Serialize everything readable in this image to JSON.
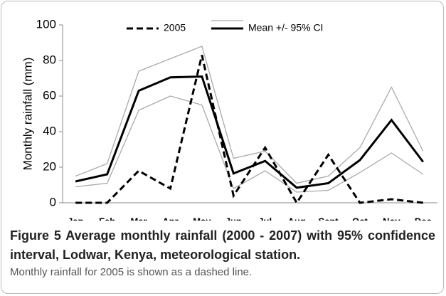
{
  "chart_data": {
    "type": "line",
    "ylabel": "Monthly rainfall (mm)",
    "categories": [
      "Jan",
      "Feb",
      "Mar",
      "Apr",
      "May",
      "Jun",
      "Jul",
      "Aug",
      "Sept",
      "Oct",
      "Nov",
      "Dec"
    ],
    "series": [
      {
        "name": "2005",
        "color": "#000000",
        "dashed": true,
        "values": [
          0,
          0,
          18,
          8,
          83,
          4,
          31,
          0,
          27,
          0,
          2,
          0
        ]
      },
      {
        "name": "Mean +/- 95% CI",
        "color": "#000000",
        "ci_color": "#aaaaaa",
        "values": [
          12,
          16,
          63,
          70.5,
          71,
          16.5,
          23.5,
          8.5,
          11,
          24,
          46.5,
          23
        ],
        "upper": [
          15,
          22,
          74,
          81,
          88,
          25,
          29,
          11,
          15,
          31,
          65,
          29
        ],
        "lower": [
          9,
          11,
          52,
          60,
          55,
          8,
          18,
          6,
          7,
          17,
          28,
          16
        ]
      }
    ],
    "ylim": [
      0,
      100
    ],
    "yticks": [
      0,
      20,
      40,
      60,
      80,
      100
    ],
    "grid": false,
    "legend": "top"
  },
  "caption": {
    "label": "Figure 5",
    "title": "Average monthly rainfall (2000 - 2007) with 95% confidence interval, Lodwar, Kenya, meteorological station.",
    "text": "Monthly rainfall for 2005 is shown as a dashed line."
  }
}
